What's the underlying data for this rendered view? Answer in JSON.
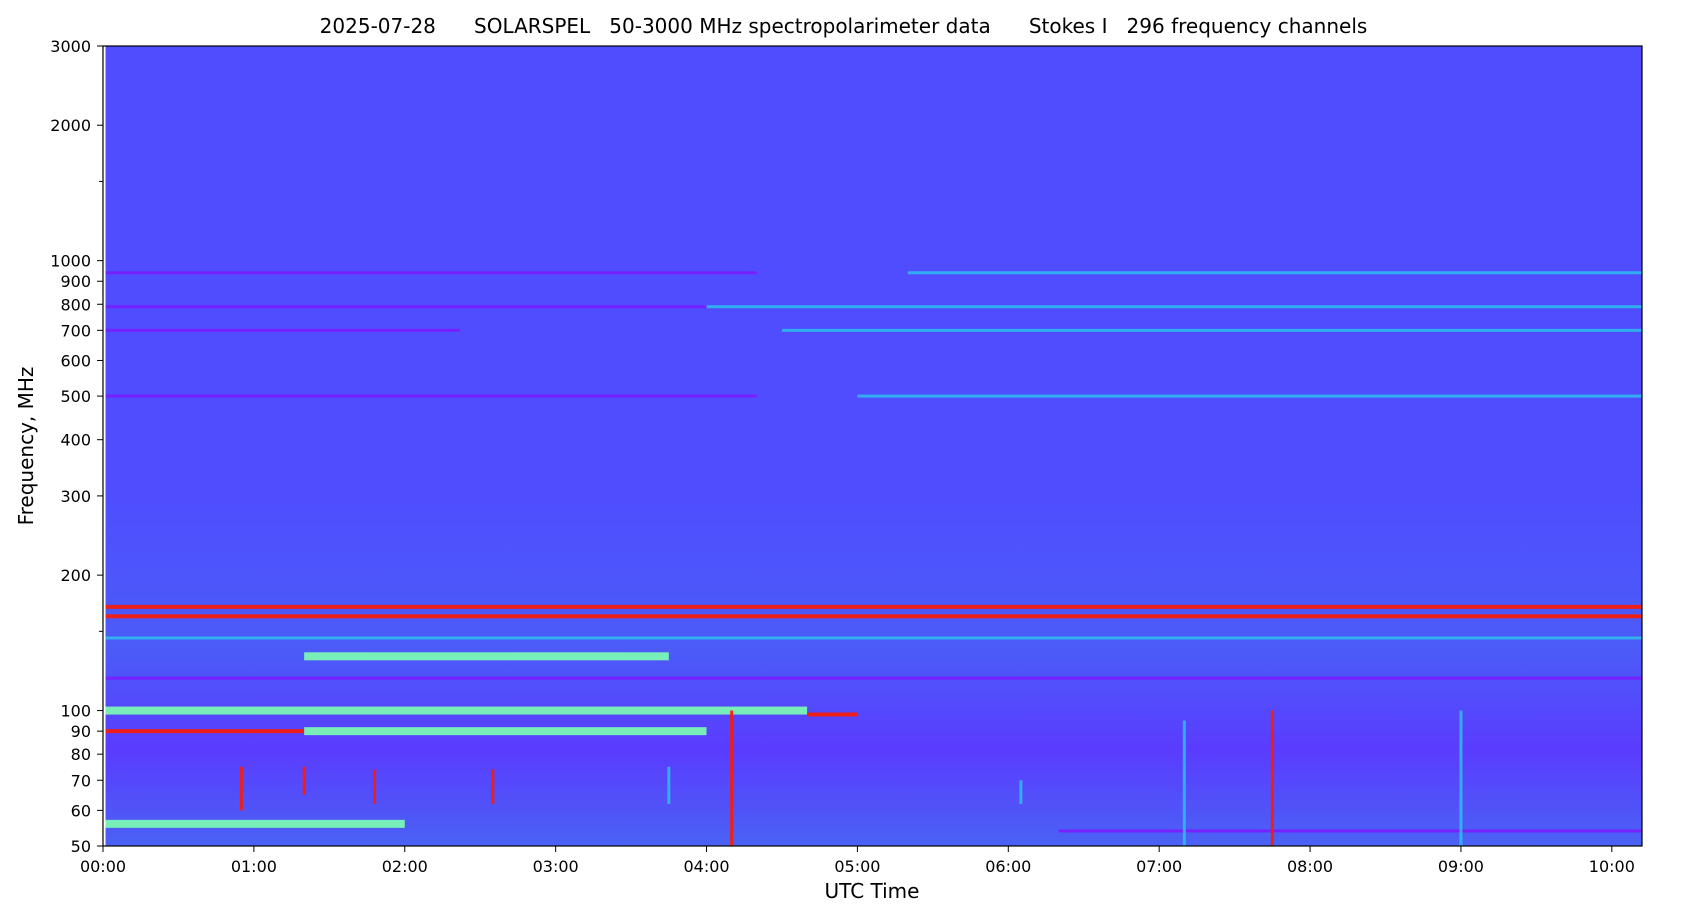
{
  "chart_data": {
    "type": "heatmap",
    "title": "2025-07-28      SOLARSPEL   50-3000 MHz spectropolarimeter data      Stokes I   296 frequency channels",
    "xlabel": "UTC Time",
    "ylabel": "Frequency, MHz",
    "y_scale": "log",
    "ylim": [
      50,
      3000
    ],
    "xlim": [
      "00:00",
      "10:12"
    ],
    "data_start": "00:01",
    "x_ticks": [
      "00:00",
      "01:00",
      "02:00",
      "03:00",
      "04:00",
      "05:00",
      "06:00",
      "07:00",
      "08:00",
      "09:00",
      "10:00"
    ],
    "y_ticks": [
      50,
      60,
      70,
      80,
      90,
      100,
      200,
      300,
      400,
      500,
      600,
      700,
      800,
      900,
      1000,
      2000,
      3000
    ],
    "y_tick_labels": [
      "50",
      "60",
      "70",
      "80",
      "90",
      "100",
      "200",
      "300",
      "400",
      "500",
      "600",
      "700",
      "800",
      "900",
      "1000",
      "2000",
      "3000"
    ],
    "y_minor_ticks": [
      1500,
      150
    ],
    "colormap": "rainbow",
    "colors": {
      "background": "#4f4dff",
      "low": "#7a1cff",
      "mid": "#2fb8f0",
      "high": "#7dffb0",
      "peak": "#ff1a00"
    },
    "features": {
      "bands": [
        {
          "f": 940,
          "t0": "00:01",
          "t1": "04:20",
          "level": "low"
        },
        {
          "f": 940,
          "t0": "05:20",
          "t1": "10:12",
          "level": "mid"
        },
        {
          "f": 790,
          "t0": "00:01",
          "t1": "04:00",
          "level": "low"
        },
        {
          "f": 790,
          "t0": "04:00",
          "t1": "10:12",
          "level": "mid"
        },
        {
          "f": 700,
          "t0": "00:01",
          "t1": "02:22",
          "level": "low"
        },
        {
          "f": 700,
          "t0": "04:30",
          "t1": "10:12",
          "level": "mid"
        },
        {
          "f": 500,
          "t0": "00:01",
          "t1": "04:20",
          "level": "low"
        },
        {
          "f": 500,
          "t0": "05:00",
          "t1": "10:12",
          "level": "mid"
        },
        {
          "f": 170,
          "t0": "00:01",
          "t1": "10:12",
          "level": "peak"
        },
        {
          "f": 162,
          "t0": "00:01",
          "t1": "10:12",
          "level": "peak"
        },
        {
          "f": 145,
          "t0": "00:01",
          "t1": "10:12",
          "level": "mid"
        },
        {
          "f": 132,
          "t0": "01:20",
          "t1": "03:45",
          "level": "high"
        },
        {
          "f": 118,
          "t0": "00:01",
          "t1": "10:12",
          "level": "low"
        },
        {
          "f": 100,
          "t0": "00:01",
          "t1": "04:40",
          "level": "high"
        },
        {
          "f": 98,
          "t0": "04:40",
          "t1": "05:00",
          "level": "peak"
        },
        {
          "f": 90,
          "t0": "00:01",
          "t1": "01:20",
          "level": "peak"
        },
        {
          "f": 90,
          "t0": "01:20",
          "t1": "04:00",
          "level": "high"
        },
        {
          "f": 56,
          "t0": "00:01",
          "t1": "02:00",
          "level": "high"
        },
        {
          "f": 54,
          "t0": "06:20",
          "t1": "10:12",
          "level": "low"
        }
      ],
      "bursts": [
        {
          "t": "00:55",
          "f0": 60,
          "f1": 75,
          "level": "peak"
        },
        {
          "t": "01:20",
          "f0": 65,
          "f1": 75,
          "level": "peak"
        },
        {
          "t": "01:48",
          "f0": 62,
          "f1": 74,
          "level": "peak"
        },
        {
          "t": "02:35",
          "f0": 62,
          "f1": 74,
          "level": "peak"
        },
        {
          "t": "03:45",
          "f0": 62,
          "f1": 75,
          "level": "mid"
        },
        {
          "t": "04:10",
          "f0": 50,
          "f1": 100,
          "level": "peak"
        },
        {
          "t": "06:05",
          "f0": 62,
          "f1": 70,
          "level": "mid"
        },
        {
          "t": "07:10",
          "f0": 50,
          "f1": 95,
          "level": "mid"
        },
        {
          "t": "07:45",
          "f0": 50,
          "f1": 100,
          "level": "peak"
        },
        {
          "t": "09:00",
          "f0": 50,
          "f1": 100,
          "level": "mid"
        }
      ]
    }
  }
}
